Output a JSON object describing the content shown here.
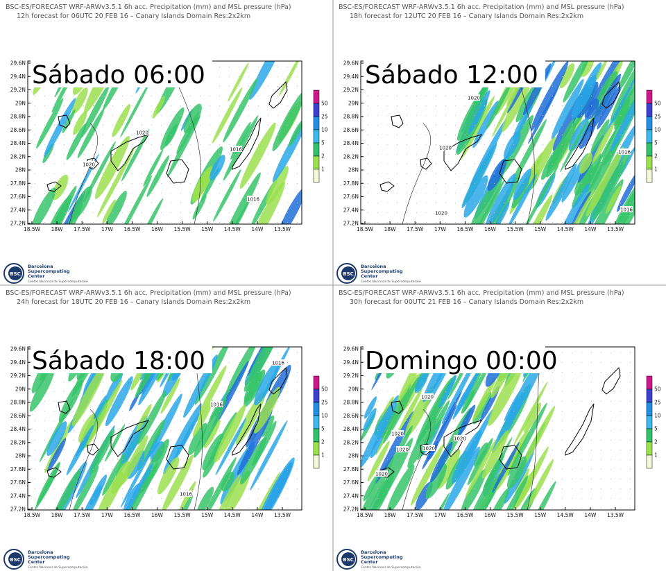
{
  "panels": [
    {
      "header_line1": "BSC-ES/FORECAST WRF-ARWv3.5.1  6h acc. Precipitation (mm) and MSL pressure (hPa)",
      "header_line2": "12h forecast for 06UTC 20 FEB 16 – Canary Islands Domain Res:2x2km",
      "label": "Sábado 06:00",
      "contour_labels": [
        "1020",
        "1020",
        "1016",
        "1016"
      ]
    },
    {
      "header_line1": "BSC-ES/FORECAST WRF-ARWv3.5.1  6h acc. Precipitation (mm) and MSL pressure (hPa)",
      "header_line2": "18h forecast for 12UTC 20 FEB 16 – Canary Islands Domain Res:2x2km",
      "label": "Sábado 12:00",
      "contour_labels": [
        "1020",
        "1020",
        "1016",
        "1016",
        "1020"
      ]
    },
    {
      "header_line1": "BSC-ES/FORECAST WRF-ARWv3.5.1  6h acc. Precipitation (mm) and MSL pressure (hPa)",
      "header_line2": "24h forecast for 18UTC 20 FEB 16 – Canary Islands Domain Res:2x2km",
      "label": "Sábado 18:00",
      "contour_labels": [
        "1016",
        "1016",
        "1016"
      ]
    },
    {
      "header_line1": "BSC-ES/FORECAST WRF-ARWv3.5.1  6h acc. Precipitation (mm) and MSL pressure (hPa)",
      "header_line2": "30h forecast for 00UTC 21 FEB 16 – Canary Islands Domain Res:2x2km",
      "label": "Domingo 00:00",
      "contour_labels": [
        "1020",
        "1020",
        "1020",
        "1020",
        "1020",
        "1020"
      ]
    }
  ],
  "lat_ticks": [
    "29.6N",
    "29.4N",
    "29.2N",
    "29N",
    "28.8N",
    "28.6N",
    "28.4N",
    "28.2N",
    "28N",
    "27.8N",
    "27.6N",
    "27.4N",
    "27.2N"
  ],
  "lon_ticks": [
    "18.5W",
    "18W",
    "17.5W",
    "17W",
    "16.5W",
    "16W",
    "15.5W",
    "15W",
    "14.5W",
    "14W",
    "13.5W"
  ],
  "legend_levels": [
    50,
    25,
    10,
    5,
    2,
    1
  ],
  "logo": {
    "mark": "BSC",
    "line1": "Barcelona",
    "line2": "Supercomputing",
    "line3": "Center",
    "line4": "Centro Nacional de Supercomputación"
  }
}
